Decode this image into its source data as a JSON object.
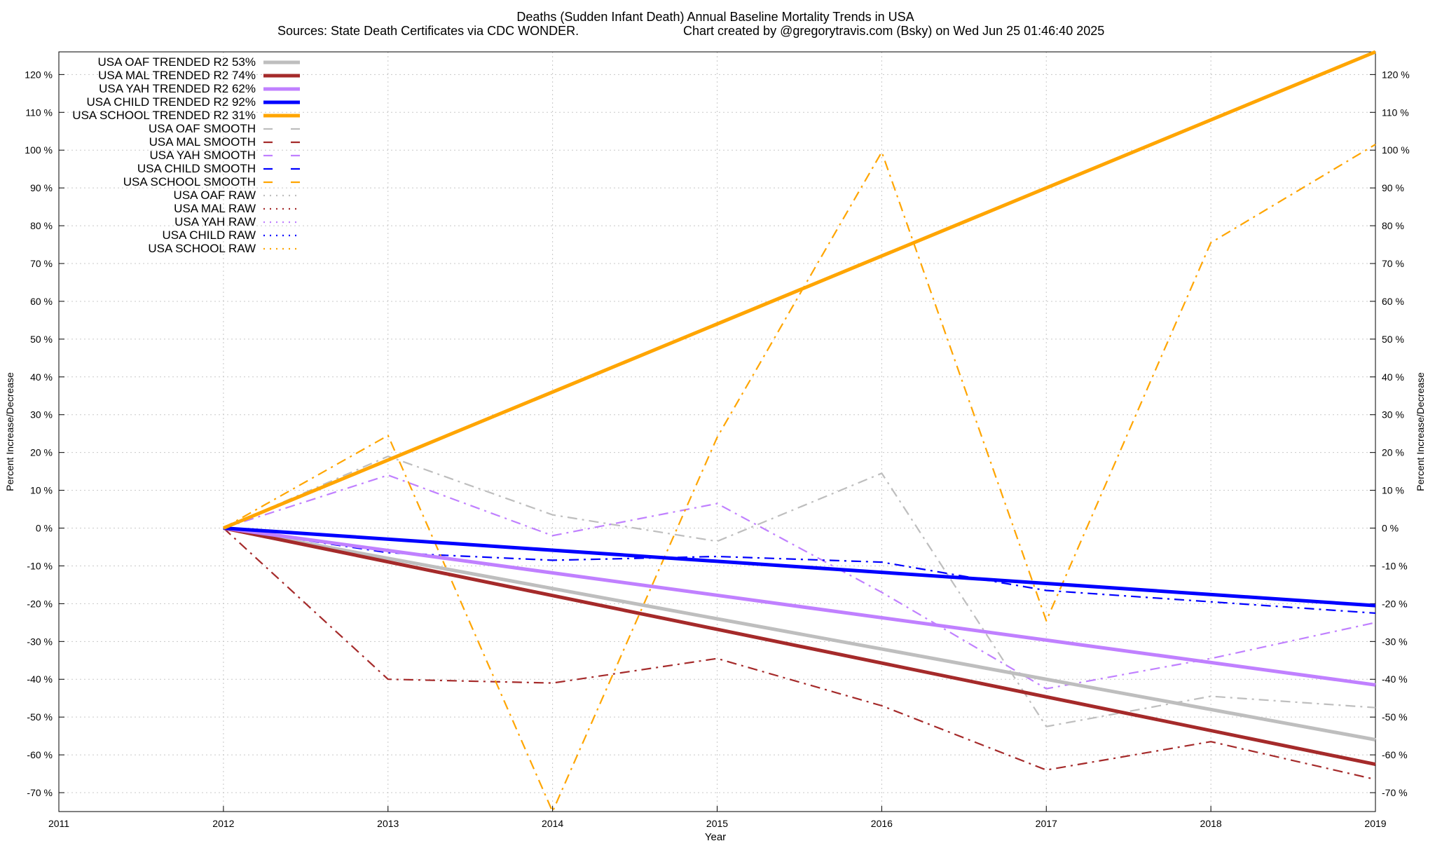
{
  "chart_data": {
    "type": "line",
    "title": "Deaths (Sudden Infant Death)  Annual Baseline Mortality Trends in USA",
    "subtitle_left": "Sources: State Death Certificates via CDC WONDER.",
    "subtitle_right": "Chart created by @gregorytravis.com (Bsky) on Wed Jun 25 01:46:40 2025",
    "xlabel": "Year",
    "ylabel": "Percent Increase/Decrease",
    "y2label": "Percent Increase/Decrease",
    "xlim": [
      2011,
      2019
    ],
    "ylim": [
      -75,
      126
    ],
    "x_ticks": [
      2011,
      2012,
      2013,
      2014,
      2015,
      2016,
      2017,
      2018,
      2019
    ],
    "y_ticks": [
      120,
      110,
      100,
      90,
      80,
      70,
      60,
      50,
      40,
      30,
      20,
      10,
      0,
      -10,
      -20,
      -30,
      -40,
      -50,
      -60,
      -70
    ],
    "y_tick_suffix": " %",
    "grid": true,
    "legend_position": "top-left",
    "series": [
      {
        "name": "USA OAF TRENDED R2  53%",
        "style": "solid",
        "color": "#bebebe",
        "x": [
          2012,
          2019
        ],
        "values": [
          0,
          -56
        ]
      },
      {
        "name": "USA MAL TRENDED R2  74%",
        "style": "solid",
        "color": "#a52a2a",
        "x": [
          2012,
          2019
        ],
        "values": [
          0,
          -62.5
        ]
      },
      {
        "name": "USA YAH TRENDED R2  62%",
        "style": "solid",
        "color": "#c080ff",
        "x": [
          2012,
          2019
        ],
        "values": [
          0,
          -41.5
        ]
      },
      {
        "name": "USA CHILD TRENDED R2  92%",
        "style": "solid",
        "color": "#0000ff",
        "x": [
          2012,
          2019
        ],
        "values": [
          0,
          -20.5
        ]
      },
      {
        "name": "USA SCHOOL TRENDED R2  31%",
        "style": "solid",
        "color": "#ffa500",
        "x": [
          2012,
          2019
        ],
        "values": [
          0,
          126
        ]
      },
      {
        "name": "USA OAF SMOOTH",
        "style": "dashdot",
        "color": "#bebebe",
        "x": [
          2012,
          2013,
          2014,
          2015,
          2016,
          2017,
          2018,
          2019
        ],
        "values": [
          0,
          19,
          3.5,
          -3.5,
          14.5,
          -52.5,
          -44.5,
          -47.5
        ]
      },
      {
        "name": "USA MAL SMOOTH",
        "style": "dashdot",
        "color": "#a52a2a",
        "x": [
          2012,
          2013,
          2014,
          2015,
          2016,
          2017,
          2018,
          2019
        ],
        "values": [
          0,
          -40,
          -41,
          -34.5,
          -47,
          -64,
          -56.5,
          -66.5
        ]
      },
      {
        "name": "USA YAH SMOOTH",
        "style": "dashdot",
        "color": "#c080ff",
        "x": [
          2012,
          2013,
          2014,
          2015,
          2016,
          2017,
          2018,
          2019
        ],
        "values": [
          0,
          14,
          -2,
          6.5,
          -17,
          -42.5,
          -34.5,
          -25
        ]
      },
      {
        "name": "USA CHILD SMOOTH",
        "style": "dashdot",
        "color": "#0000ff",
        "x": [
          2012,
          2013,
          2014,
          2015,
          2016,
          2017,
          2018,
          2019
        ],
        "values": [
          0,
          -6.5,
          -8.5,
          -7.5,
          -9,
          -16.5,
          -19.5,
          -22.5
        ]
      },
      {
        "name": "USA SCHOOL SMOOTH",
        "style": "dashdot",
        "color": "#ffa500",
        "x": [
          2012,
          2013,
          2014,
          2015,
          2016,
          2017,
          2018,
          2019
        ],
        "values": [
          0,
          24.5,
          -75,
          24,
          99.5,
          -24.5,
          75.5,
          101.5
        ]
      }
    ],
    "legend_extra": [
      {
        "name": "USA OAF RAW",
        "style": "dotted",
        "color": "#bebebe"
      },
      {
        "name": "USA MAL RAW",
        "style": "dotted",
        "color": "#a52a2a"
      },
      {
        "name": "USA YAH RAW",
        "style": "dotted",
        "color": "#c080ff"
      },
      {
        "name": "USA CHILD RAW",
        "style": "dotted",
        "color": "#0000ff"
      },
      {
        "name": "USA SCHOOL RAW",
        "style": "dotted",
        "color": "#ffa500"
      }
    ]
  }
}
